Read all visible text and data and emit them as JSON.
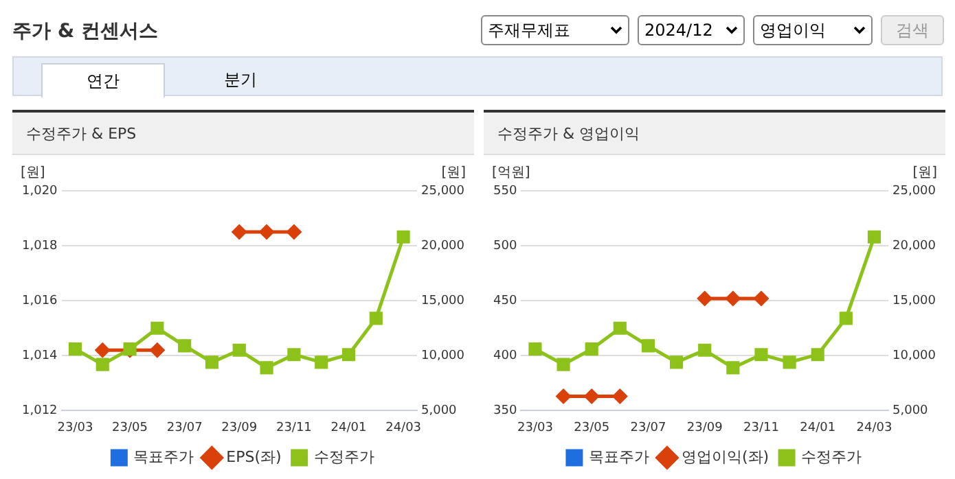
{
  "chart_data": [
    {
      "type": "other",
      "title": "주가 & 컨센서스",
      "annotations": [
        "주재무제표",
        "2024/12",
        "영업이익",
        "검색",
        "연간",
        "분기"
      ]
    },
    {
      "type": "line",
      "title": "수정주가 & EPS",
      "ylabel": "[원]",
      "y2label": "[원]",
      "categories": [
        "23/03",
        null,
        "23/05",
        null,
        "23/07",
        null,
        "23/09",
        null,
        "23/11",
        null,
        "24/01",
        null,
        "24/03"
      ],
      "series": [
        {
          "name": "목표주가",
          "color": "#1e6ee0",
          "marker": "square",
          "values": [
            null,
            null,
            null,
            null,
            null,
            null,
            null,
            null,
            null,
            null,
            null,
            null,
            null
          ]
        },
        {
          "name": "EPS(좌)",
          "color": "#d9400a",
          "marker": "diamond",
          "values": [
            null,
            1014.2,
            1014.2,
            1014.2,
            null,
            null,
            1018.5,
            1018.5,
            1018.5,
            null,
            null,
            null,
            null
          ]
        },
        {
          "name": "수정주가",
          "color": "#8cc21a",
          "marker": "square",
          "axis": "y2",
          "values": [
            10600,
            9200,
            10600,
            12500,
            10900,
            9400,
            10500,
            8900,
            10100,
            9400,
            10100,
            13400,
            20800
          ]
        }
      ],
      "ylim": [
        1012,
        1020
      ],
      "yticks": [
        {
          "value": 1012,
          "label": "1,012"
        },
        {
          "value": 1014,
          "label": "1,014"
        },
        {
          "value": 1016,
          "label": "1,016"
        },
        {
          "value": 1018,
          "label": "1,018"
        },
        {
          "value": 1020,
          "label": "1,020"
        }
      ],
      "y2lim": [
        5000,
        25000
      ],
      "y2ticks": [
        {
          "value": 5000,
          "label": "5,000"
        },
        {
          "value": 10000,
          "label": "10,000"
        },
        {
          "value": 15000,
          "label": "15,000"
        },
        {
          "value": 20000,
          "label": "20,000"
        },
        {
          "value": 25000,
          "label": "25,000"
        }
      ],
      "grid": "y",
      "legend": "bottom"
    },
    {
      "type": "line",
      "title": "수정주가 & 영업이익",
      "ylabel": "[억원]",
      "y2label": "[원]",
      "categories": [
        "23/03",
        null,
        "23/05",
        null,
        "23/07",
        null,
        "23/09",
        null,
        "23/11",
        null,
        "24/01",
        null,
        "24/03"
      ],
      "series": [
        {
          "name": "목표주가",
          "color": "#1e6ee0",
          "marker": "square",
          "values": [
            null,
            null,
            null,
            null,
            null,
            null,
            null,
            null,
            null,
            null,
            null,
            null,
            null
          ]
        },
        {
          "name": "영업이익(좌)",
          "color": "#d9400a",
          "marker": "diamond",
          "values": [
            null,
            363,
            363,
            363,
            null,
            null,
            452,
            452,
            452,
            null,
            null,
            null,
            null
          ]
        },
        {
          "name": "수정주가",
          "color": "#8cc21a",
          "marker": "square",
          "axis": "y2",
          "values": [
            10600,
            9200,
            10600,
            12500,
            10900,
            9400,
            10500,
            8900,
            10100,
            9400,
            10100,
            13400,
            20800
          ]
        }
      ],
      "ylim": [
        350,
        550
      ],
      "yticks": [
        350,
        400,
        450,
        500,
        550
      ],
      "y2lim": [
        5000,
        25000
      ],
      "y2ticks": [
        {
          "value": 5000,
          "label": "5,000"
        },
        {
          "value": 10000,
          "label": "10,000"
        },
        {
          "value": 15000,
          "label": "15,000"
        },
        {
          "value": 20000,
          "label": "20,000"
        },
        {
          "value": 25000,
          "label": "25,000"
        }
      ],
      "grid": "y",
      "legend": "bottom"
    }
  ]
}
